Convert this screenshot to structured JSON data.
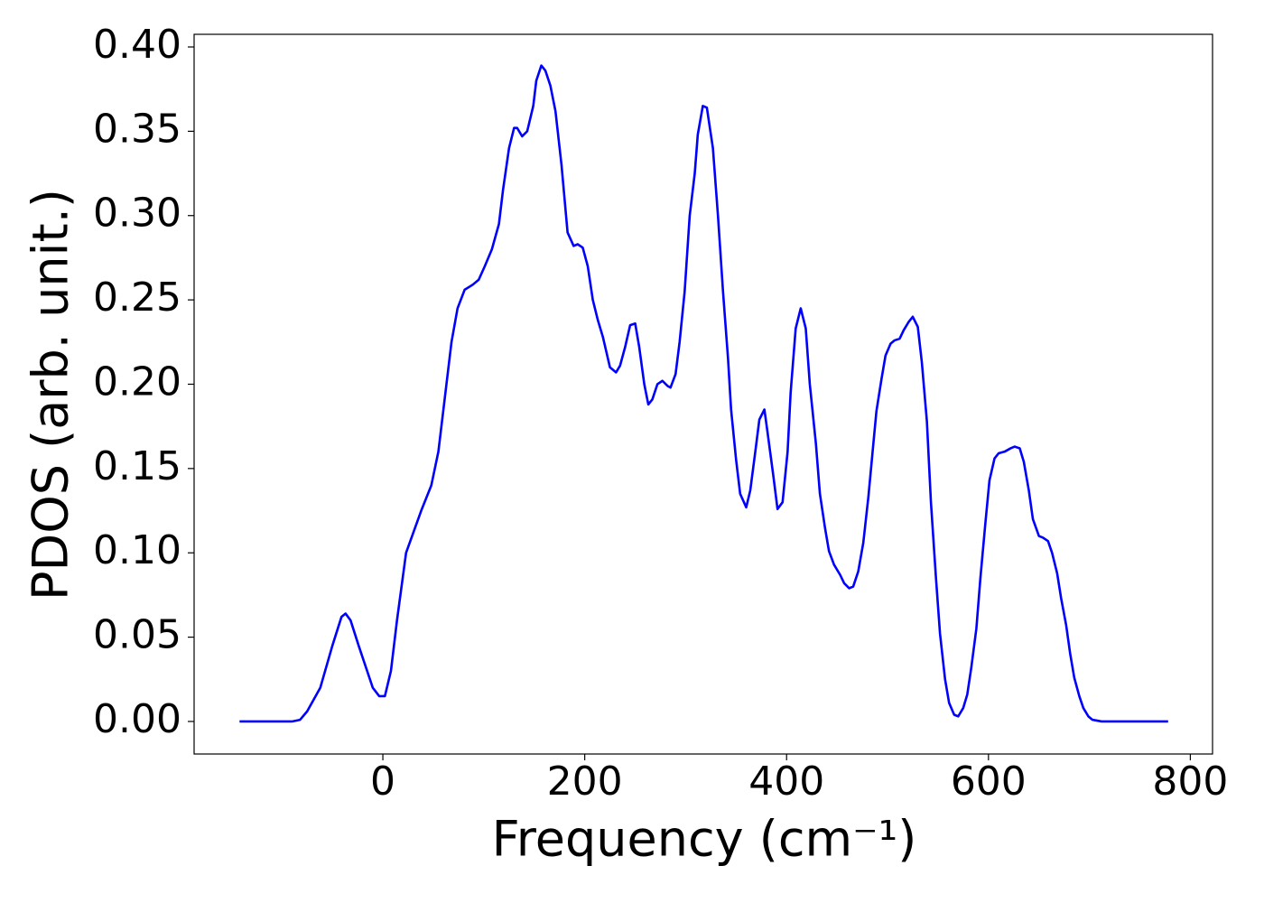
{
  "chart_data": {
    "type": "line",
    "xlabel": "Frequency (cm⁻¹)",
    "ylabel": "PDOS (arb. unit.)",
    "color": "#0000ff",
    "xlim": [
      -187,
      822
    ],
    "ylim": [
      -0.0193,
      0.4075
    ],
    "xticks": [
      0,
      200,
      400,
      600,
      800
    ],
    "yticks": [
      {
        "value": 0,
        "label": "0.00"
      },
      {
        "value": 0.05,
        "label": "0.05"
      },
      {
        "value": 0.1,
        "label": "0.10"
      },
      {
        "value": 0.15,
        "label": "0.15"
      },
      {
        "value": 0.2,
        "label": "0.20"
      },
      {
        "value": 0.25,
        "label": "0.25"
      },
      {
        "value": 0.3,
        "label": "0.30"
      },
      {
        "value": 0.35,
        "label": "0.35"
      },
      {
        "value": 0.4,
        "label": "0.40"
      }
    ],
    "x": [
      -142,
      -90,
      -82,
      -75,
      -62,
      -50,
      -41,
      -37,
      -32,
      -24,
      -10,
      -3.6,
      2,
      8,
      14,
      23,
      32,
      38,
      48,
      55,
      63,
      68,
      74,
      81,
      89,
      95,
      101,
      108,
      115,
      119,
      125,
      130,
      133,
      138,
      143,
      149,
      152,
      157,
      161,
      166,
      171,
      177,
      183,
      189,
      193,
      198,
      203,
      208,
      213,
      218,
      225,
      231,
      235,
      240,
      245,
      250,
      254,
      259,
      263,
      267,
      272,
      277,
      282,
      285,
      290,
      294,
      299,
      304,
      309,
      312,
      317,
      321,
      327,
      332,
      337,
      342,
      345,
      350,
      354,
      360,
      364,
      369,
      373,
      378,
      381,
      387,
      391,
      396,
      401,
      404,
      409,
      414,
      419,
      423,
      429,
      433,
      438,
      442,
      447,
      453,
      457,
      462,
      466,
      471,
      476,
      481,
      486,
      489,
      494,
      498,
      503,
      507,
      512,
      516,
      521,
      525,
      530,
      534,
      539,
      543,
      548,
      552,
      557,
      561,
      566,
      570,
      575,
      579,
      583,
      588,
      592,
      597,
      601,
      606,
      610,
      616,
      622,
      626,
      631,
      635,
      640,
      644,
      650,
      654,
      659,
      663,
      668,
      672,
      677,
      681,
      685,
      690,
      694,
      699,
      703,
      712,
      778
    ],
    "values": [
      0,
      0,
      0.001,
      0.006,
      0.02,
      0.045,
      0.062,
      0.064,
      0.06,
      0.045,
      0.02,
      0.015,
      0.015,
      0.03,
      0.06,
      0.1,
      0.115,
      0.125,
      0.14,
      0.16,
      0.2,
      0.225,
      0.245,
      0.256,
      0.259,
      0.262,
      0.27,
      0.28,
      0.295,
      0.315,
      0.34,
      0.352,
      0.352,
      0.347,
      0.35,
      0.365,
      0.38,
      0.389,
      0.386,
      0.377,
      0.362,
      0.33,
      0.29,
      0.282,
      0.283,
      0.281,
      0.27,
      0.25,
      0.238,
      0.228,
      0.21,
      0.207,
      0.211,
      0.222,
      0.235,
      0.236,
      0.222,
      0.2,
      0.188,
      0.191,
      0.2,
      0.202,
      0.199,
      0.198,
      0.206,
      0.225,
      0.255,
      0.3,
      0.325,
      0.348,
      0.365,
      0.364,
      0.34,
      0.3,
      0.255,
      0.215,
      0.185,
      0.155,
      0.135,
      0.127,
      0.137,
      0.16,
      0.179,
      0.185,
      0.172,
      0.145,
      0.126,
      0.13,
      0.16,
      0.195,
      0.233,
      0.245,
      0.233,
      0.2,
      0.165,
      0.135,
      0.115,
      0.101,
      0.093,
      0.087,
      0.082,
      0.079,
      0.08,
      0.089,
      0.106,
      0.133,
      0.165,
      0.184,
      0.203,
      0.217,
      0.224,
      0.226,
      0.227,
      0.232,
      0.237,
      0.24,
      0.234,
      0.213,
      0.178,
      0.13,
      0.085,
      0.052,
      0.025,
      0.011,
      0.004,
      0.003,
      0.008,
      0.016,
      0.032,
      0.055,
      0.085,
      0.118,
      0.143,
      0.156,
      0.159,
      0.16,
      0.162,
      0.163,
      0.162,
      0.154,
      0.137,
      0.12,
      0.11,
      0.109,
      0.107,
      0.1,
      0.088,
      0.073,
      0.057,
      0.04,
      0.026,
      0.015,
      0.008,
      0.003,
      0.001,
      0,
      0
    ]
  }
}
